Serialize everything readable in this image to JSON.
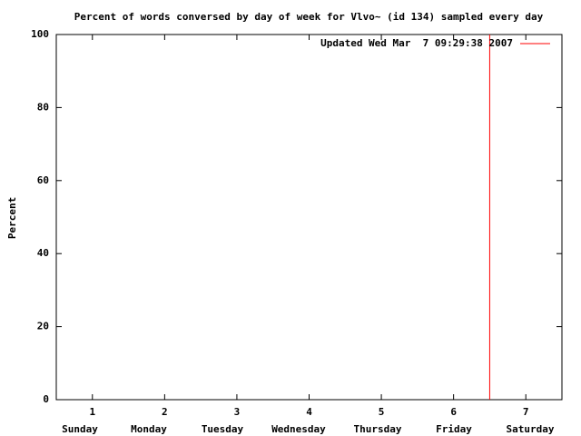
{
  "chart_data": {
    "type": "line",
    "title": "Percent of words conversed by day of week for Vlvo~ (id 134) sampled every day",
    "ylabel": "Percent",
    "x": [
      6.5,
      6.5
    ],
    "series": [
      {
        "name": "Updated Wed Mar  7 09:29:38 2007",
        "color": "#ff0000",
        "values": [
          0,
          100
        ]
      }
    ],
    "xlim": [
      0.5,
      7.5
    ],
    "xticks": [
      1,
      2,
      3,
      4,
      5,
      6,
      7
    ],
    "ylim": [
      0,
      100
    ],
    "yticks": [
      0,
      20,
      40,
      60,
      80,
      100
    ],
    "day_labels": [
      "Sunday",
      "Monday",
      "Tuesday",
      "Wednesday",
      "Thursday",
      "Friday",
      "Saturday"
    ],
    "legend": "upper right"
  }
}
